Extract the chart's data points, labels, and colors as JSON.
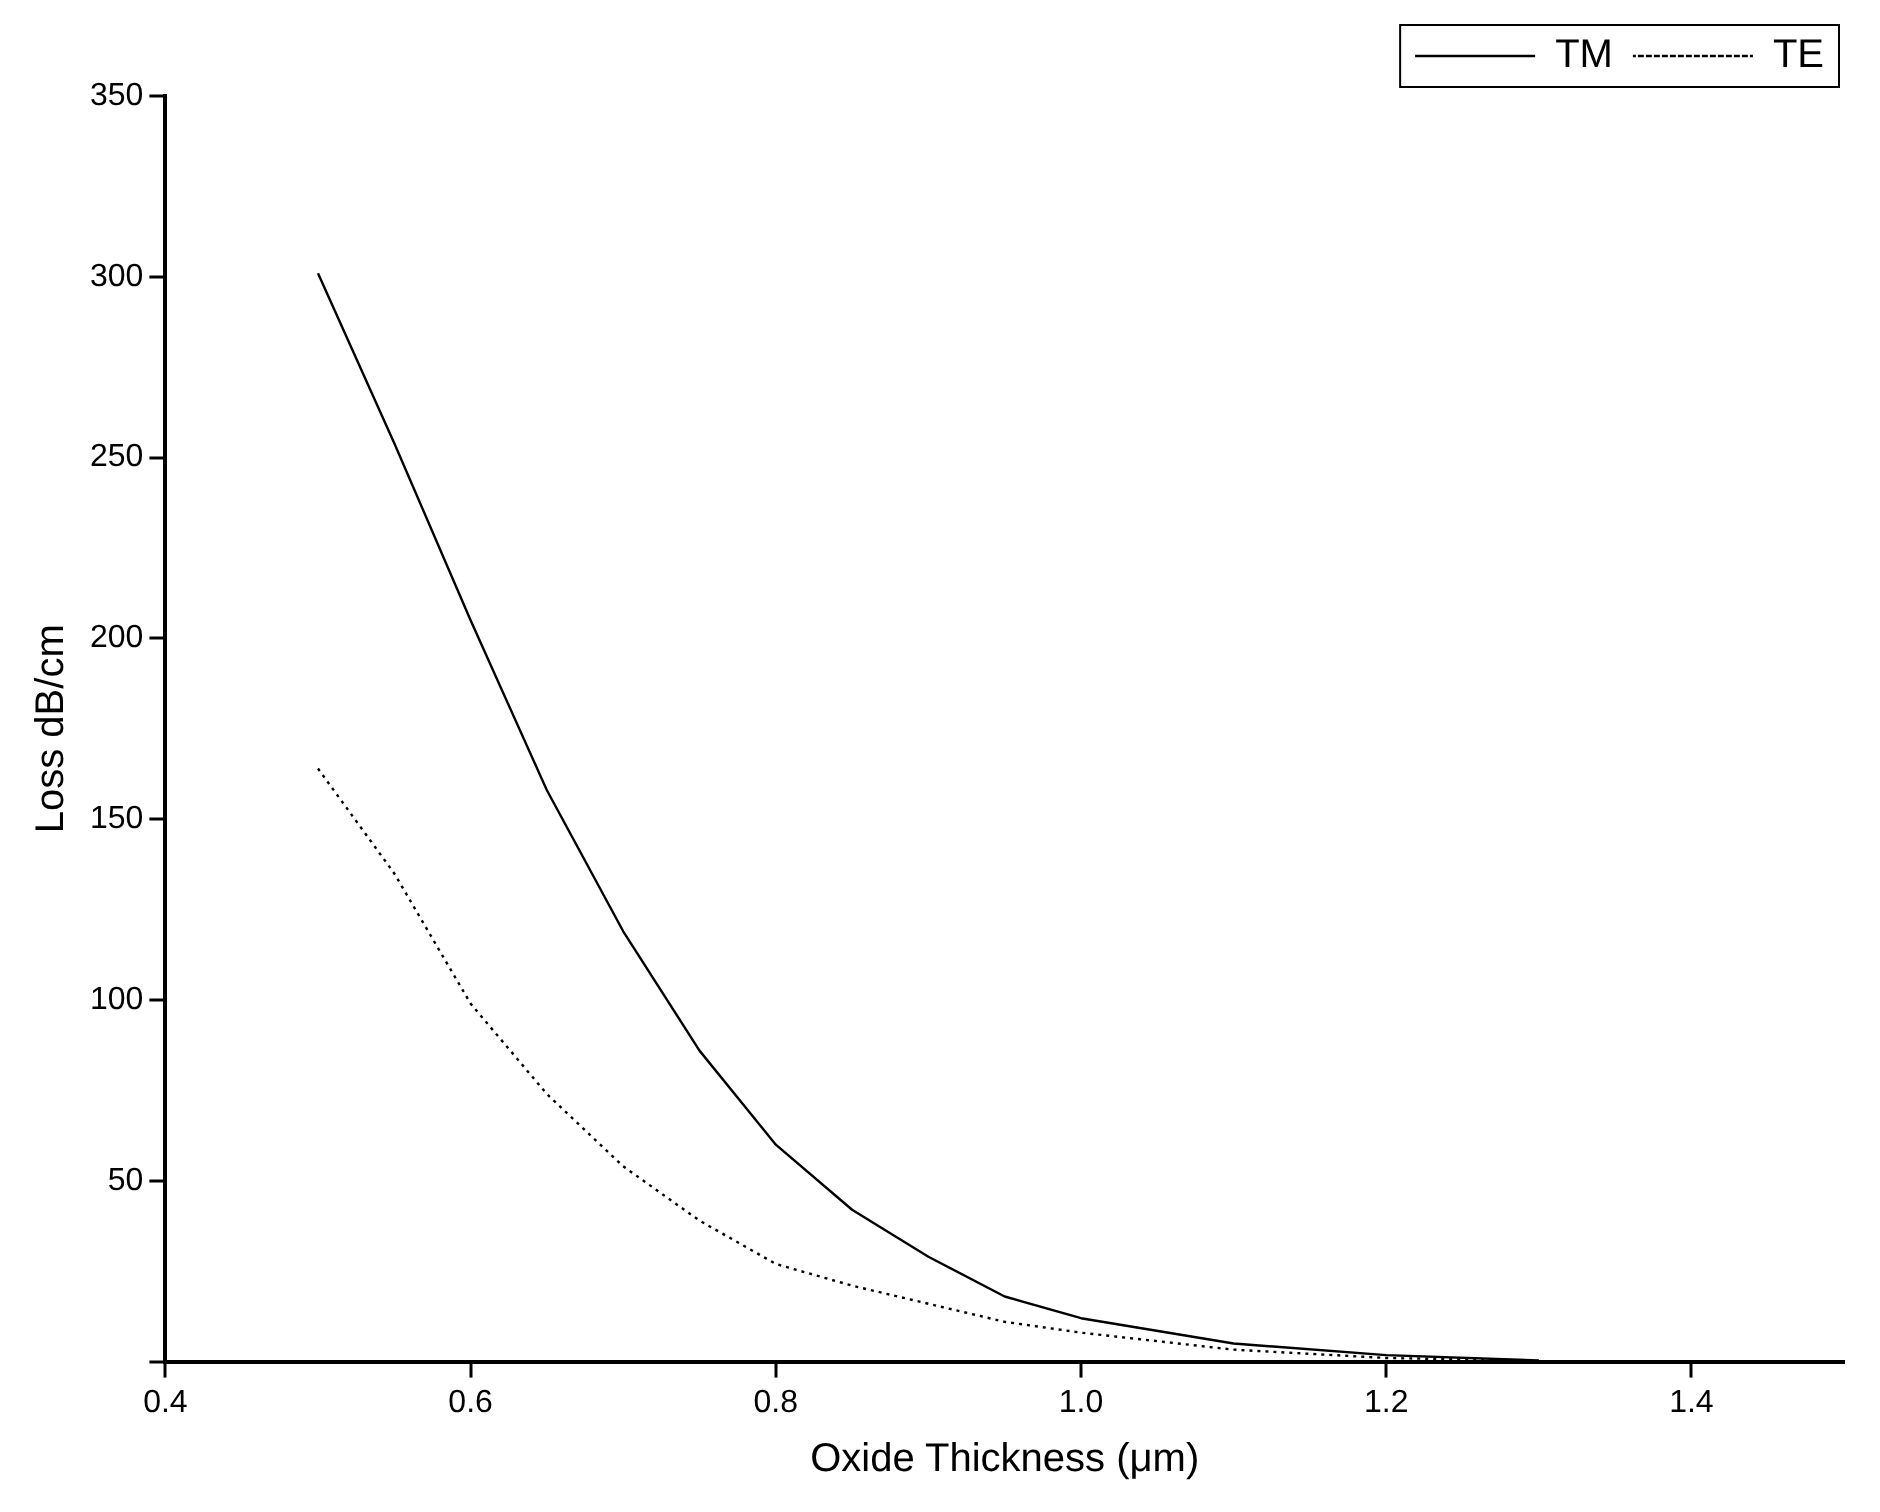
{
  "chart_data": {
    "type": "line",
    "xlabel": "Oxide Thickness (μm)",
    "ylabel": "Loss dB/cm",
    "xlim": [
      0.4,
      1.5
    ],
    "xticks": [
      {
        "value": 0.4,
        "label": "0.4"
      },
      {
        "value": 0.6,
        "label": "0.6"
      },
      {
        "value": 0.8,
        "label": "0.8"
      },
      {
        "value": 1,
        "label": "1.0"
      },
      {
        "value": 1.2,
        "label": "1.2"
      },
      {
        "value": 1.4,
        "label": "1.4"
      }
    ],
    "ylim": [
      0,
      350
    ],
    "yticks": [
      {
        "value": 0,
        "label": null
      },
      50,
      100,
      150,
      200,
      250,
      300,
      350
    ],
    "grid": false,
    "legend": "top right",
    "marker": "none",
    "series": [
      {
        "name": "TM",
        "color": "#000000",
        "line_style": "solid",
        "x": [
          0.5,
          0.55,
          0.6,
          0.65,
          0.7,
          0.75,
          0.8,
          0.85,
          0.9,
          0.95,
          1,
          1.1,
          1.2,
          1.3
        ],
        "values": [
          301,
          254,
          205,
          158,
          119,
          86,
          60,
          42,
          29,
          18,
          12,
          5,
          1.8,
          0.3
        ]
      },
      {
        "name": "TE",
        "color": "#000000",
        "line_style": "dotted",
        "x": [
          0.5,
          0.55,
          0.6,
          0.65,
          0.7,
          0.75,
          0.8,
          0.85,
          0.9,
          0.95,
          1,
          1.1,
          1.2,
          1.3
        ],
        "values": [
          164,
          135,
          99,
          74,
          54,
          39,
          27,
          21,
          16,
          11,
          8,
          3.3,
          1,
          0.2
        ]
      }
    ]
  }
}
